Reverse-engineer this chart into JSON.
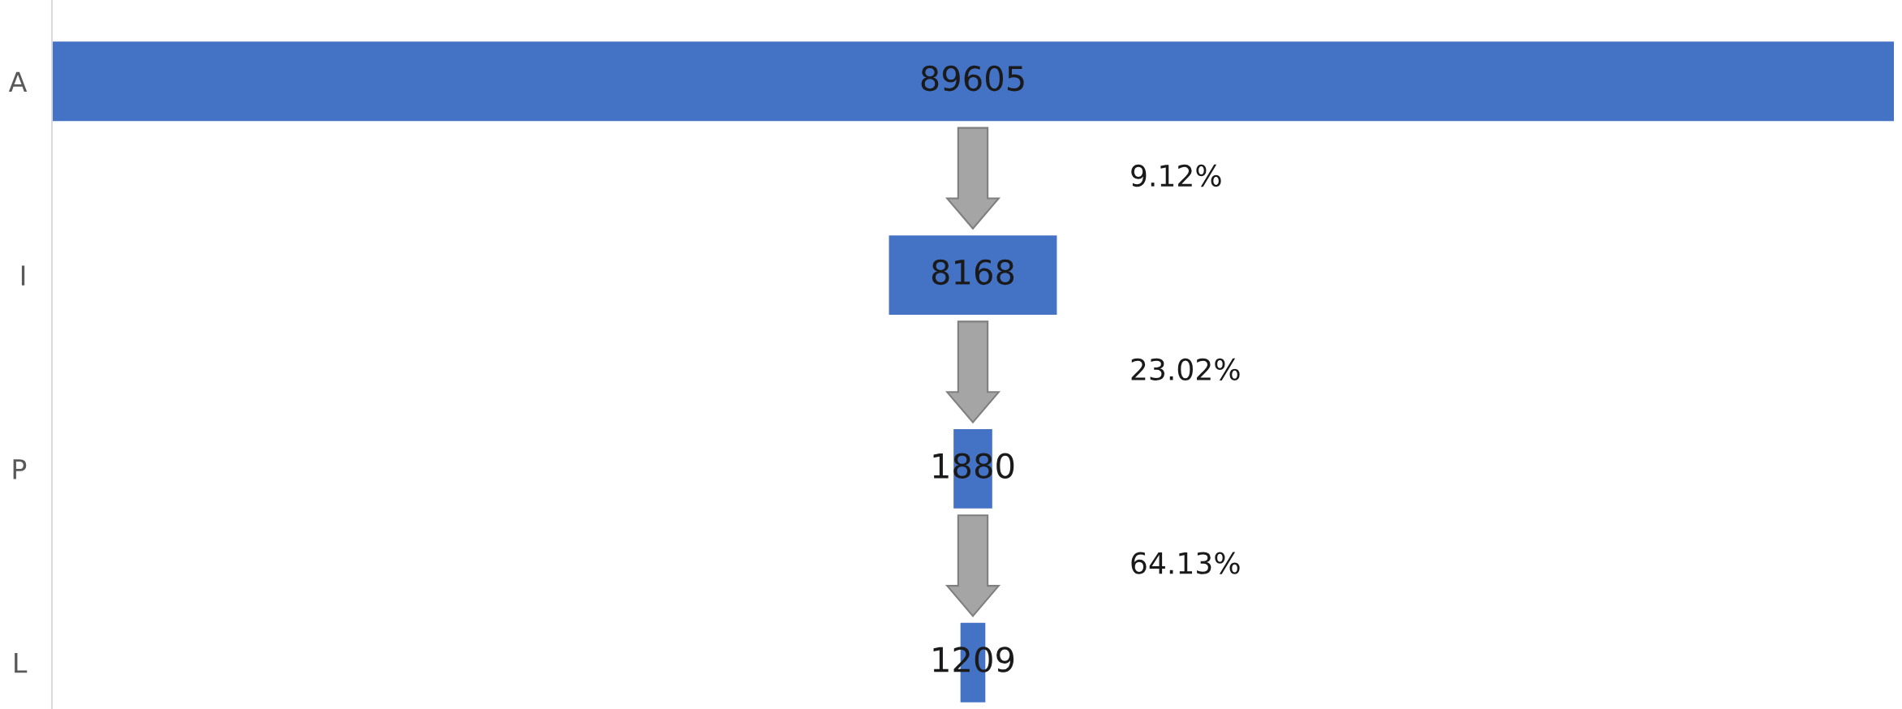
{
  "chart_data": {
    "type": "other",
    "categories": [
      "A",
      "I",
      "P",
      "L"
    ],
    "values": [
      89605,
      8168,
      1880,
      1209
    ],
    "color": "#4472c4",
    "data_labels": true,
    "annotations": [
      "9.12%",
      "23.02%",
      "64.13%"
    ]
  }
}
